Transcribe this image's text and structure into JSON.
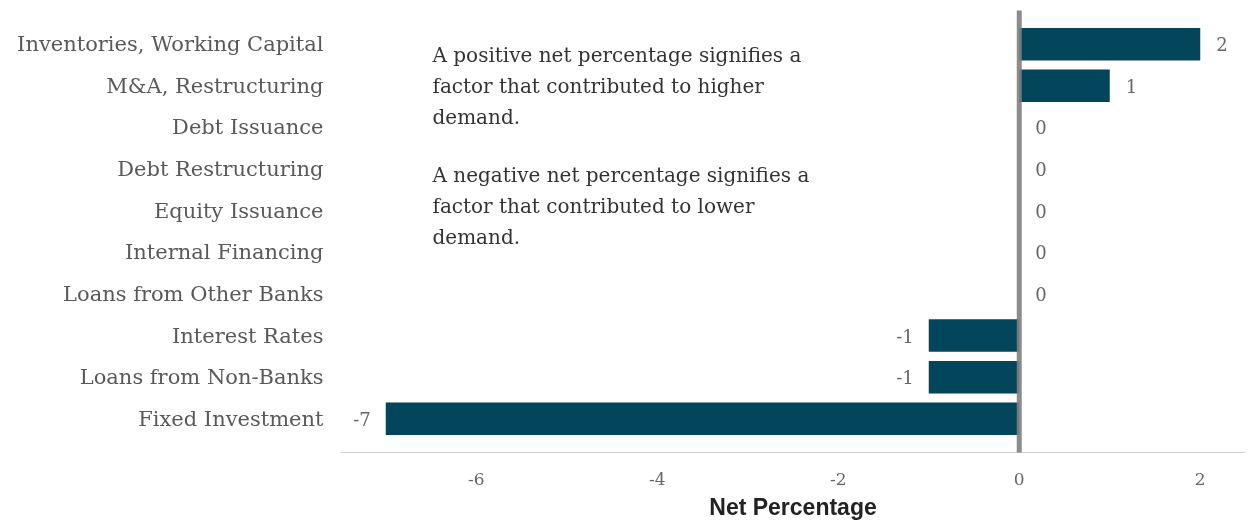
{
  "chart_data": {
    "type": "bar",
    "orientation": "horizontal",
    "categories": [
      "Inventories, Working Capital",
      "M&A, Restructuring",
      "Debt Issuance",
      "Debt Restructuring",
      "Equity Issuance",
      "Internal Financing",
      "Loans from Other Banks",
      "Interest Rates",
      "Loans from Non-Banks",
      "Fixed Investment"
    ],
    "values": [
      2,
      1,
      0,
      0,
      0,
      0,
      0,
      -1,
      -1,
      -7
    ],
    "color": "#03455a",
    "xlabel": "Net Percentage",
    "xlim": [
      -7.5,
      2.5
    ],
    "xticks": [
      -6,
      -4,
      -2,
      0,
      2
    ],
    "data_labels": true,
    "grid": false,
    "ref_lines": [
      {
        "axis": "x",
        "value": 0,
        "color": "#808080"
      }
    ],
    "annotations": [
      "A positive net percentage signifies a factor that contributed to higher demand.",
      "A negative net percentage signifies a factor that contributed to lower demand."
    ]
  }
}
